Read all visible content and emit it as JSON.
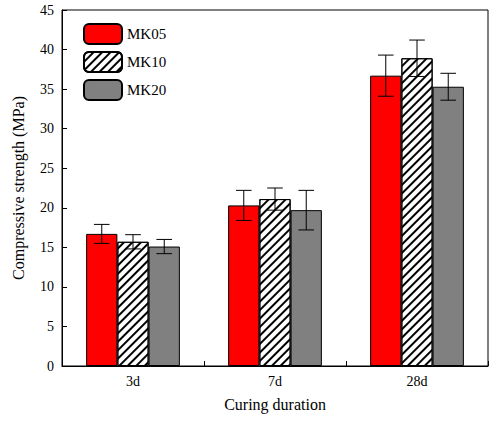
{
  "chart_data": {
    "type": "bar",
    "x_label": "Curing duration",
    "y_label": "Compressive strength (MPa)",
    "categories": [
      "3d",
      "7d",
      "28d"
    ],
    "series": [
      {
        "name": "MK05",
        "color": "#ff0000",
        "values": [
          16.7,
          20.3,
          36.7
        ],
        "errors": [
          1.2,
          1.9,
          2.6
        ]
      },
      {
        "name": "MK10",
        "color": "#ffffff",
        "values": [
          15.7,
          21.1,
          38.9
        ],
        "errors": [
          0.9,
          1.4,
          2.3
        ]
      },
      {
        "name": "MK20",
        "color": "#808080",
        "values": [
          15.1,
          19.7,
          35.3
        ],
        "errors": [
          0.9,
          2.5,
          1.7
        ]
      }
    ],
    "ylim": [
      0,
      45
    ],
    "yticks": [
      0,
      5,
      10,
      15,
      20,
      25,
      30,
      35,
      40,
      45
    ],
    "grid": false,
    "legend": "upper left"
  }
}
